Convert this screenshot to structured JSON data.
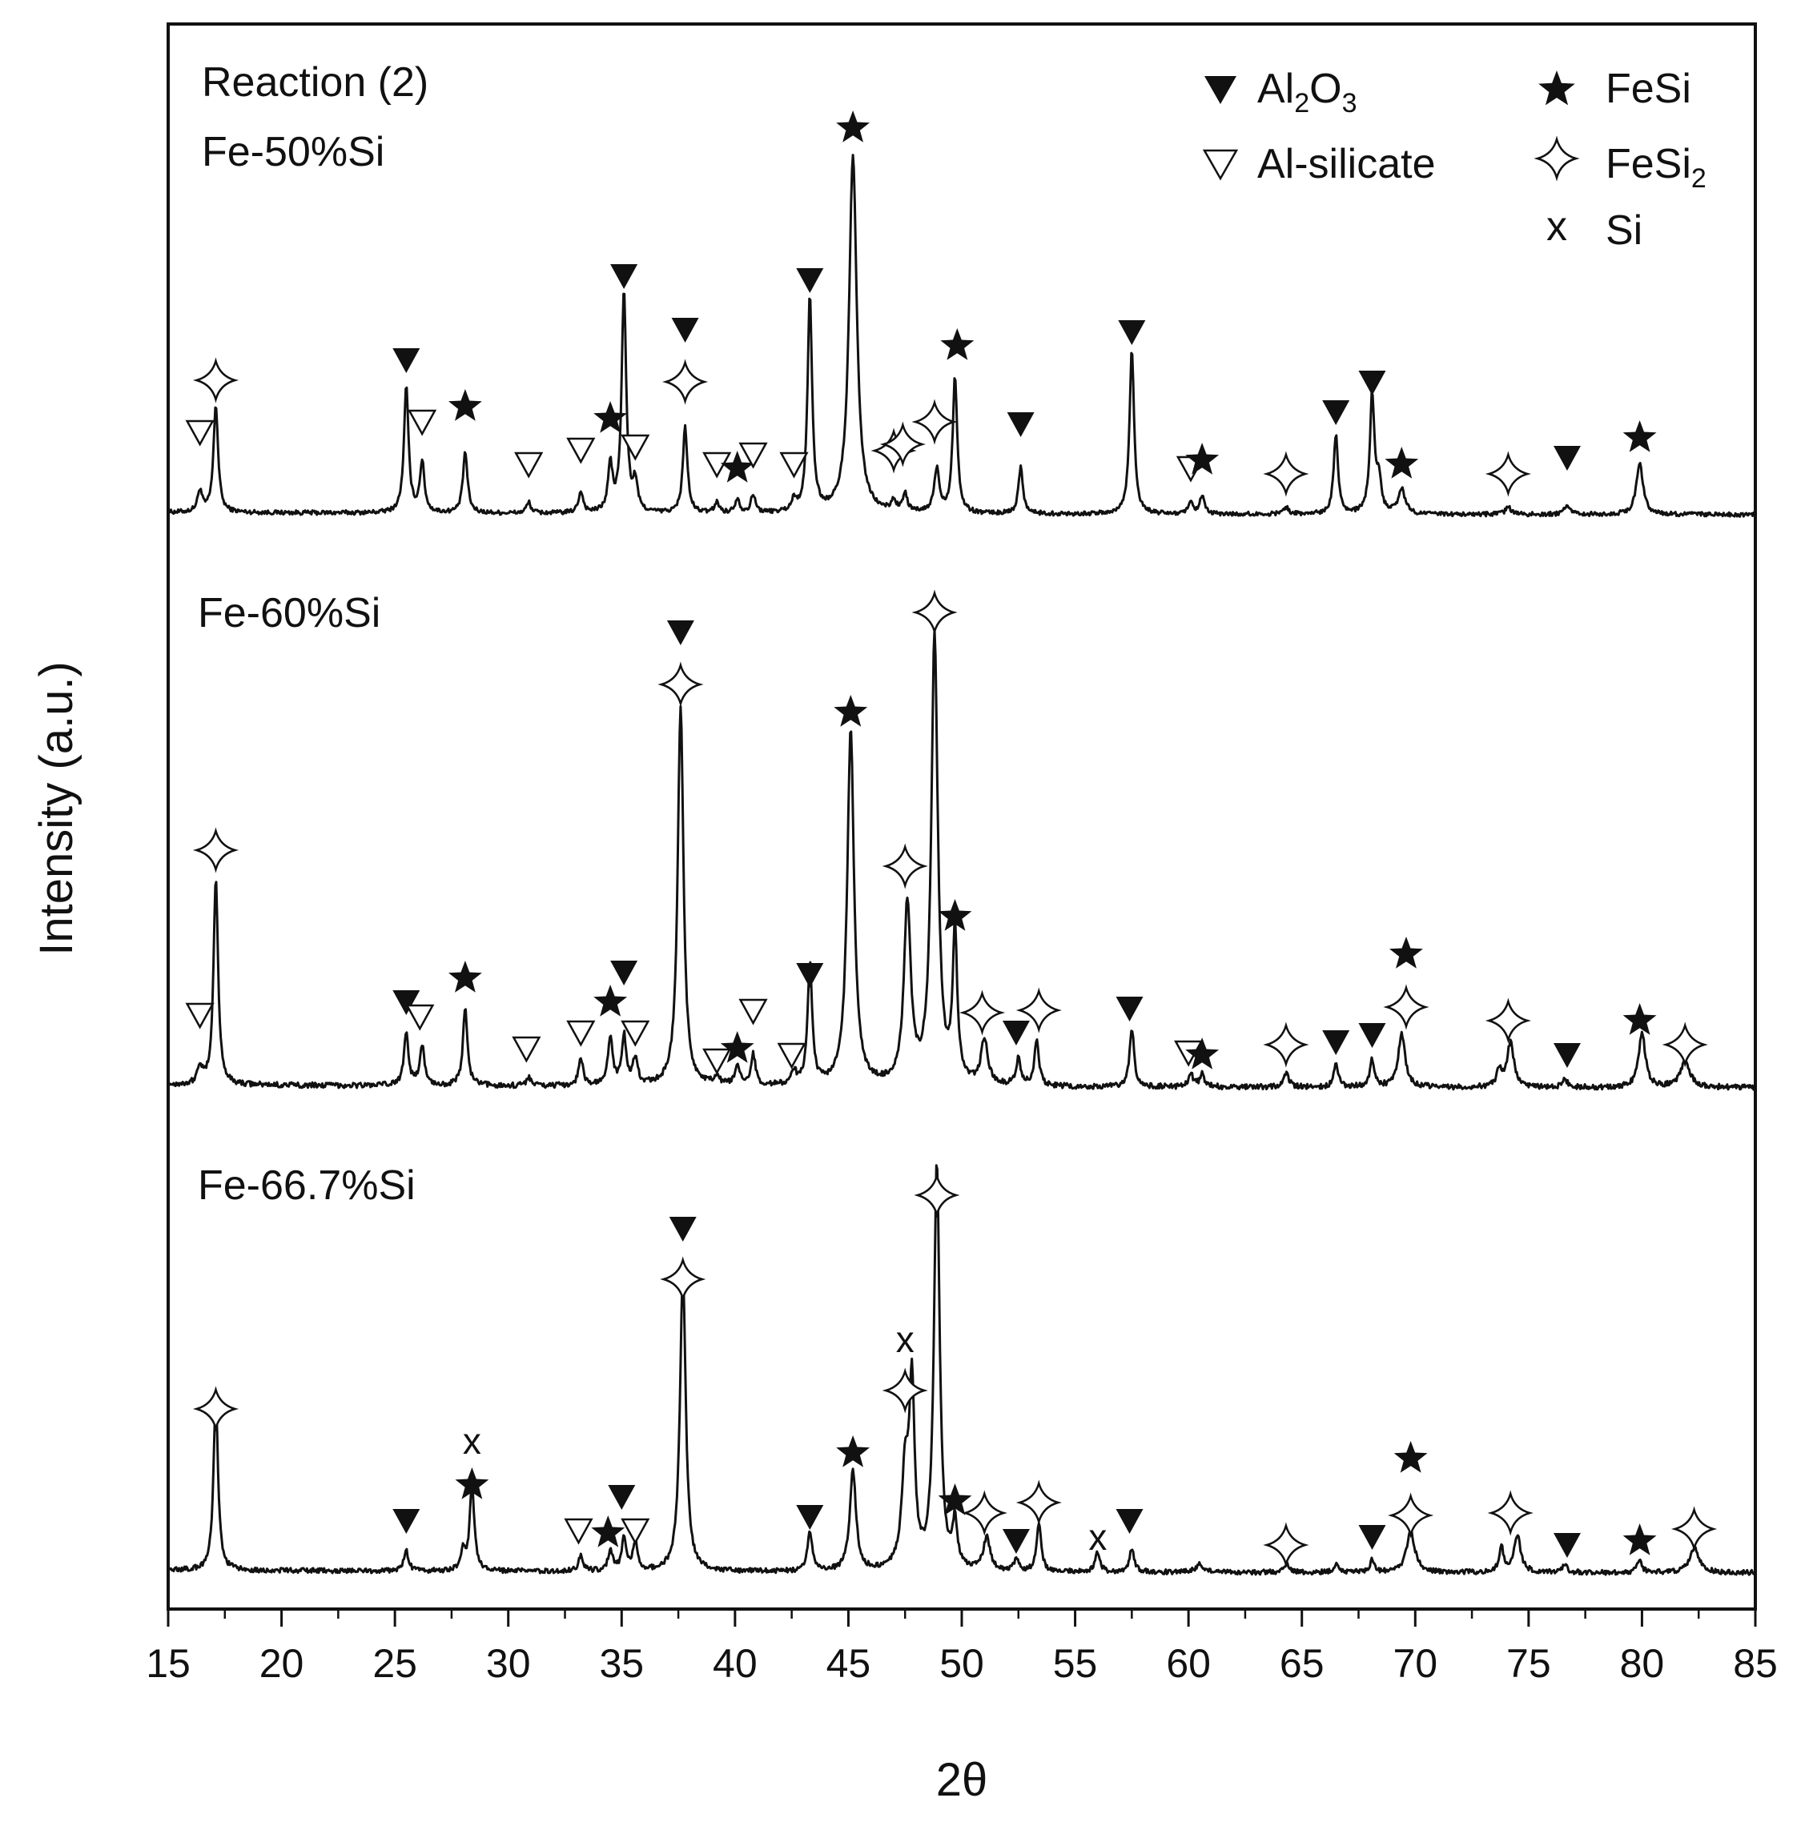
{
  "chart_data": {
    "type": "line",
    "title": "",
    "xlabel": "2θ",
    "ylabel": "Intensity (a.u.)",
    "xlim": [
      15,
      85
    ],
    "xticks": [
      15,
      20,
      25,
      30,
      35,
      40,
      45,
      50,
      55,
      60,
      65,
      70,
      75,
      80,
      85
    ],
    "grid": false,
    "annotation_title": "Reaction (2)",
    "legend_position": "top-right",
    "legend": [
      {
        "symbol": "filled-down-triangle",
        "label": "Al",
        "sub1": "2",
        "mid": "O",
        "sub2": "3",
        "phase": "Al2O3"
      },
      {
        "symbol": "open-down-triangle",
        "label": "Al-silicate",
        "phase": "Al-silicate"
      },
      {
        "symbol": "filled-star",
        "label": "FeSi",
        "phase": "FeSi"
      },
      {
        "symbol": "open-four-point-star",
        "label": "FeSi",
        "sub1": "2",
        "phase": "FeSi2"
      },
      {
        "symbol": "x",
        "label": "Si",
        "phase": "Si"
      }
    ],
    "series": [
      {
        "name": "Fe-50%Si",
        "baseline": 0.02,
        "peaks": [
          [
            16.4,
            0.06,
            0.12
          ],
          [
            17.1,
            0.3,
            0.12
          ],
          [
            25.5,
            0.35,
            0.12
          ],
          [
            26.2,
            0.14,
            0.12
          ],
          [
            28.1,
            0.17,
            0.12
          ],
          [
            30.9,
            0.03,
            0.12
          ],
          [
            33.2,
            0.06,
            0.12
          ],
          [
            34.5,
            0.13,
            0.12
          ],
          [
            35.1,
            0.62,
            0.12
          ],
          [
            35.6,
            0.08,
            0.12
          ],
          [
            37.8,
            0.24,
            0.12
          ],
          [
            39.2,
            0.03,
            0.12
          ],
          [
            40.1,
            0.04,
            0.12
          ],
          [
            40.8,
            0.05,
            0.12
          ],
          [
            42.6,
            0.03,
            0.12
          ],
          [
            43.3,
            0.6,
            0.12
          ],
          [
            45.2,
            1.0,
            0.2
          ],
          [
            47.0,
            0.03,
            0.12
          ],
          [
            47.5,
            0.05,
            0.12
          ],
          [
            48.9,
            0.12,
            0.14
          ],
          [
            49.7,
            0.38,
            0.12
          ],
          [
            52.6,
            0.13,
            0.12
          ],
          [
            57.5,
            0.46,
            0.12
          ],
          [
            60.1,
            0.03,
            0.12
          ],
          [
            60.6,
            0.05,
            0.12
          ],
          [
            64.3,
            0.02,
            0.14
          ],
          [
            66.5,
            0.22,
            0.12
          ],
          [
            68.1,
            0.33,
            0.12
          ],
          [
            68.4,
            0.09,
            0.12
          ],
          [
            69.4,
            0.07,
            0.18
          ],
          [
            74.1,
            0.02,
            0.15
          ],
          [
            76.7,
            0.03,
            0.12
          ],
          [
            79.9,
            0.14,
            0.18
          ]
        ]
      },
      {
        "name": "Fe-60%Si",
        "baseline": 0.02,
        "peaks": [
          [
            16.4,
            0.04,
            0.12
          ],
          [
            17.1,
            0.46,
            0.12
          ],
          [
            25.5,
            0.12,
            0.12
          ],
          [
            26.2,
            0.09,
            0.12
          ],
          [
            28.1,
            0.17,
            0.12
          ],
          [
            30.9,
            0.02,
            0.12
          ],
          [
            33.2,
            0.06,
            0.12
          ],
          [
            34.5,
            0.11,
            0.12
          ],
          [
            35.1,
            0.11,
            0.12
          ],
          [
            35.6,
            0.06,
            0.12
          ],
          [
            37.6,
            0.85,
            0.15
          ],
          [
            39.2,
            0.02,
            0.12
          ],
          [
            40.1,
            0.04,
            0.12
          ],
          [
            40.8,
            0.07,
            0.12
          ],
          [
            42.6,
            0.03,
            0.12
          ],
          [
            43.3,
            0.27,
            0.12
          ],
          [
            45.1,
            0.79,
            0.18
          ],
          [
            47.6,
            0.4,
            0.18
          ],
          [
            48.8,
            1.0,
            0.17
          ],
          [
            49.7,
            0.33,
            0.12
          ],
          [
            51.0,
            0.1,
            0.18
          ],
          [
            52.5,
            0.06,
            0.12
          ],
          [
            53.3,
            0.1,
            0.12
          ],
          [
            57.5,
            0.13,
            0.12
          ],
          [
            60.1,
            0.03,
            0.12
          ],
          [
            60.6,
            0.03,
            0.12
          ],
          [
            64.3,
            0.03,
            0.15
          ],
          [
            66.5,
            0.05,
            0.12
          ],
          [
            68.1,
            0.06,
            0.12
          ],
          [
            69.4,
            0.12,
            0.18
          ],
          [
            73.7,
            0.04,
            0.12
          ],
          [
            74.2,
            0.1,
            0.18
          ],
          [
            76.6,
            0.02,
            0.12
          ],
          [
            80.0,
            0.12,
            0.18
          ],
          [
            81.9,
            0.06,
            0.25
          ]
        ]
      },
      {
        "name": "Fe-66.7%Si",
        "baseline": 0.02,
        "peaks": [
          [
            17.1,
            0.42,
            0.12
          ],
          [
            25.5,
            0.05,
            0.12
          ],
          [
            28.0,
            0.05,
            0.12
          ],
          [
            28.4,
            0.21,
            0.12
          ],
          [
            33.2,
            0.04,
            0.12
          ],
          [
            34.5,
            0.05,
            0.12
          ],
          [
            35.1,
            0.08,
            0.12
          ],
          [
            35.6,
            0.07,
            0.12
          ],
          [
            37.7,
            0.74,
            0.15
          ],
          [
            43.3,
            0.1,
            0.12
          ],
          [
            45.2,
            0.25,
            0.16
          ],
          [
            47.5,
            0.23,
            0.18
          ],
          [
            47.8,
            0.44,
            0.14
          ],
          [
            48.9,
            1.0,
            0.15
          ],
          [
            49.7,
            0.11,
            0.12
          ],
          [
            51.1,
            0.08,
            0.18
          ],
          [
            52.4,
            0.03,
            0.12
          ],
          [
            53.4,
            0.12,
            0.12
          ],
          [
            56.0,
            0.05,
            0.12
          ],
          [
            57.5,
            0.06,
            0.12
          ],
          [
            60.5,
            0.02,
            0.2
          ],
          [
            64.3,
            0.02,
            0.15
          ],
          [
            66.5,
            0.02,
            0.12
          ],
          [
            68.1,
            0.03,
            0.12
          ],
          [
            69.8,
            0.1,
            0.22
          ],
          [
            73.8,
            0.06,
            0.12
          ],
          [
            74.5,
            0.09,
            0.18
          ],
          [
            76.6,
            0.02,
            0.12
          ],
          [
            79.9,
            0.03,
            0.12
          ],
          [
            82.3,
            0.06,
            0.25
          ]
        ]
      }
    ]
  }
}
